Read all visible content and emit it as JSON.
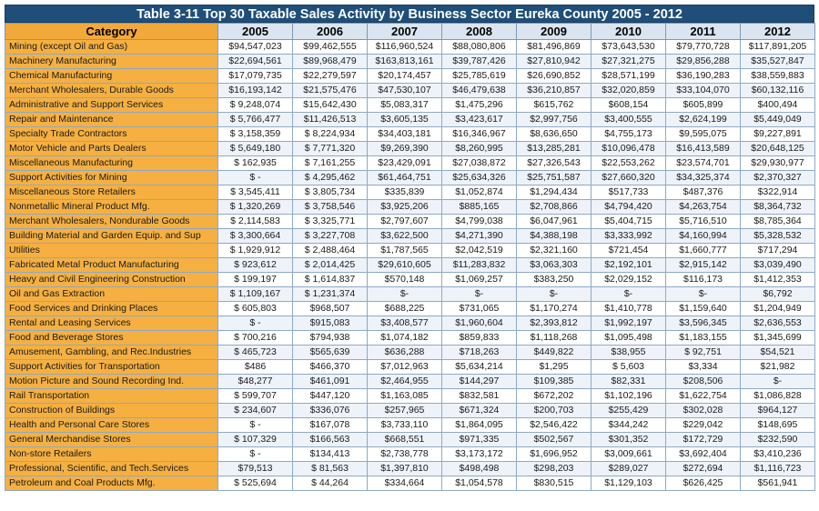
{
  "title": "Table 3-11 Top 30 Taxable Sales Activity by Business Sector Eureka County 2005 - 2012",
  "headers": [
    "Category",
    "2005",
    "2006",
    "2007",
    "2008",
    "2009",
    "2010",
    "2011",
    "2012"
  ],
  "rows": [
    [
      "Mining (except Oil and Gas)",
      "$94,547,023",
      "$99,462,555",
      "$116,960,524",
      "$88,080,806",
      "$81,496,869",
      "$73,643,530",
      "$79,770,728",
      "$117,891,205"
    ],
    [
      "Machinery Manufacturing",
      "$22,694,561",
      "$89,968,479",
      "$163,813,161",
      "$39,787,426",
      "$27,810,942",
      "$27,321,275",
      "$29,856,288",
      "$35,527,847"
    ],
    [
      "Chemical Manufacturing",
      "$17,079,735",
      "$22,279,597",
      "$20,174,457",
      "$25,785,619",
      "$26,690,852",
      "$28,571,199",
      "$36,190,283",
      "$38,559,883"
    ],
    [
      "Merchant Wholesalers, Durable Goods",
      "$16,193,142",
      "$21,575,476",
      "$47,530,107",
      "$46,479,638",
      "$36,210,857",
      "$32,020,859",
      "$33,104,070",
      "$60,132,116"
    ],
    [
      "Administrative and Support Services",
      "$ 9,248,074",
      "$15,642,430",
      "$5,083,317",
      "$1,475,296",
      "$615,762",
      "$608,154",
      "$605,899",
      "$400,494"
    ],
    [
      "Repair and Maintenance",
      "$ 5,766,477",
      "$11,426,513",
      "$3,605,135",
      "$3,423,617",
      "$2,997,756",
      "$3,400,555",
      "$2,624,199",
      "$5,449,049"
    ],
    [
      "Specialty Trade Contractors",
      "$ 3,158,359",
      "$ 8,224,934",
      "$34,403,181",
      "$16,346,967",
      "$8,636,650",
      "$4,755,173",
      "$9,595,075",
      "$9,227,891"
    ],
    [
      "Motor Vehicle and Parts Dealers",
      "$ 5,649,180",
      "$ 7,771,320",
      "$9,269,390",
      "$8,260,995",
      "$13,285,281",
      "$10,096,478",
      "$16,413,589",
      "$20,648,125"
    ],
    [
      "Miscellaneous Manufacturing",
      "$ 162,935",
      "$ 7,161,255",
      "$23,429,091",
      "$27,038,872",
      "$27,326,543",
      "$22,553,262",
      "$23,574,701",
      "$29,930,977"
    ],
    [
      "Support Activities for Mining",
      "$ -",
      "$ 4,295,462",
      "$61,464,751",
      "$25,634,326",
      "$25,751,587",
      "$27,660,320",
      "$34,325,374",
      "$2,370,327"
    ],
    [
      "Miscellaneous Store Retailers",
      "$ 3,545,411",
      "$ 3,805,734",
      "$335,839",
      "$1,052,874",
      "$1,294,434",
      "$517,733",
      "$487,376",
      "$322,914"
    ],
    [
      "Nonmetallic Mineral Product Mfg.",
      "$ 1,320,269",
      "$ 3,758,546",
      "$3,925,206",
      "$885,165",
      "$2,708,866",
      "$4,794,420",
      "$4,263,754",
      "$8,364,732"
    ],
    [
      "Merchant Wholesalers, Nondurable Goods",
      "$ 2,114,583",
      "$ 3,325,771",
      "$2,797,607",
      "$4,799,038",
      "$6,047,961",
      "$5,404,715",
      "$5,716,510",
      "$8,785,364"
    ],
    [
      "Building Material and Garden Equip. and Sup",
      "$ 3,300,664",
      "$ 3,227,708",
      "$3,622,500",
      "$4,271,390",
      "$4,388,198",
      "$3,333,992",
      "$4,160,994",
      "$5,328,532"
    ],
    [
      " Utilities",
      "$ 1,929,912",
      "$ 2,488,464",
      "$1,787,565",
      "$2,042,519",
      "$2,321,160",
      "$721,454",
      "$1,660,777",
      "$717,294"
    ],
    [
      "Fabricated Metal Product Manufacturing",
      "$ 923,612",
      "$ 2,014,425",
      "$29,610,605",
      "$11,283,832",
      "$3,063,303",
      "$2,192,101",
      "$2,915,142",
      "$3,039,490"
    ],
    [
      "Heavy and Civil Engineering Construction",
      "$ 199,197",
      "$ 1,614,837",
      "$570,148",
      "$1,069,257",
      "$383,250",
      "$2,029,152",
      "$116,173",
      "$1,412,353"
    ],
    [
      "Oil and Gas Extraction",
      "$ 1,109,167",
      "$ 1,231,374",
      "$-",
      "$-",
      "$-",
      "$-",
      "$-",
      "$6,792"
    ],
    [
      "Food Services and Drinking Places",
      "$ 605,803",
      "$968,507",
      "$688,225",
      "$731,065",
      "$1,170,274",
      "$1,410,778",
      "$1,159,640",
      "$1,204,949"
    ],
    [
      "Rental and Leasing Services",
      "$ -",
      "$915,083",
      "$3,408,577",
      "$1,960,604",
      "$2,393,812",
      "$1,992,197",
      "$3,596,345",
      "$2,636,553"
    ],
    [
      "Food and Beverage Stores",
      "$ 700,216",
      "$794,938",
      "$1,074,182",
      "$859,833",
      "$1,118,268",
      "$1,095,498",
      "$1,183,155",
      "$1,345,699"
    ],
    [
      "Amusement, Gambling, and Rec.Industries",
      "$ 465,723",
      "$565,639",
      "$636,288",
      "$718,263",
      "$449,822",
      "$38,955",
      "$ 92,751",
      "$54,521"
    ],
    [
      "Support Activities for Transportation",
      "$486",
      "$466,370",
      "$7,012,963",
      "$5,634,214",
      "$1,295",
      "$ 5,603",
      "$3,334",
      "$21,982"
    ],
    [
      "Motion Picture and Sound Recording Ind.",
      "$48,277",
      "$461,091",
      "$2,464,955",
      "$144,297",
      "$109,385",
      "$82,331",
      "$208,506",
      "$-"
    ],
    [
      "Rail Transportation",
      "$ 599,707",
      "$447,120",
      "$1,163,085",
      "$832,581",
      "$672,202",
      "$1,102,196",
      "$1,622,754",
      "$1,086,828"
    ],
    [
      "Construction of Buildings",
      "$ 234,607",
      "$336,076",
      "$257,965",
      "$671,324",
      "$200,703",
      "$255,429",
      "$302,028",
      "$964,127"
    ],
    [
      "Health and Personal Care Stores",
      "$ -",
      "$167,078",
      "$3,733,110",
      "$1,864,095",
      "$2,546,422",
      "$344,242",
      "$229,042",
      "$148,695"
    ],
    [
      "General Merchandise Stores",
      "$ 107,329",
      "$166,563",
      "$668,551",
      "$971,335",
      "$502,567",
      "$301,352",
      "$172,729",
      "$232,590"
    ],
    [
      "Non-store Retailers",
      "$ -",
      "$134,413",
      "$2,738,778",
      "$3,173,172",
      "$1,696,952",
      "$3,009,661",
      "$3,692,404",
      "$3,410,236"
    ],
    [
      "Professional, Scientific, and Tech.Services",
      "$79,513",
      "$ 81,563",
      "$1,397,810",
      "$498,498",
      "$298,203",
      "$289,027",
      "$272,694",
      "$1,116,723"
    ],
    [
      "Petroleum and Coal Products Mfg.",
      "$ 525,694",
      "$ 44,264",
      "$334,664",
      "$1,054,578",
      "$830,515",
      "$1,129,103",
      "$626,425",
      "$561,941"
    ]
  ],
  "colors": {
    "title_bg": "#1f4e79",
    "category_bg": "#f5b041",
    "header_bg": "#dbe5f1"
  }
}
